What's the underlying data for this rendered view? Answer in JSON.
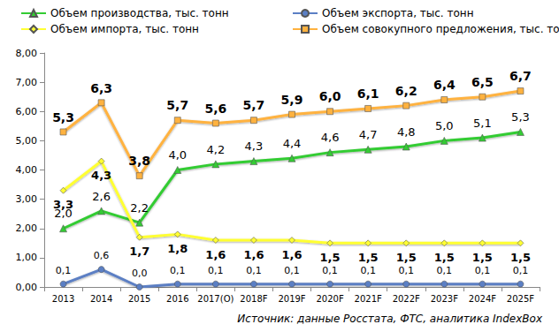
{
  "chart_data": {
    "type": "line",
    "source": "Источник: данные Росстата, ФТС, аналитика IndexBox",
    "categories": [
      "2013",
      "2014",
      "2015",
      "2016",
      "2017(O)",
      "2018F",
      "2019F",
      "2020F",
      "2021F",
      "2022F",
      "2023F",
      "2024F",
      "2025F"
    ],
    "series": [
      {
        "name": "Объем производства, тыс. тонн",
        "color": "#33cc33",
        "marker": "triangle",
        "values": [
          2.0,
          2.6,
          2.2,
          4.0,
          4.2,
          4.3,
          4.4,
          4.6,
          4.7,
          4.8,
          5.0,
          5.1,
          5.3
        ],
        "value_labels": [
          "2,0",
          "2,6",
          "2,2",
          "4,0",
          "4,2",
          "4,3",
          "4,4",
          "4,6",
          "4,7",
          "4,8",
          "5,0",
          "5,1",
          "5,3"
        ]
      },
      {
        "name": "Объем экспорта, тыс. тонн",
        "color": "#5b7fc4",
        "marker": "circle",
        "values": [
          0.1,
          0.6,
          0.0,
          0.1,
          0.1,
          0.1,
          0.1,
          0.1,
          0.1,
          0.1,
          0.1,
          0.1,
          0.1
        ],
        "value_labels": [
          "0,1",
          "0,6",
          "0,0",
          "0,1",
          "0,1",
          "0,1",
          "0,1",
          "0,1",
          "0,1",
          "0,1",
          "0,1",
          "0,1",
          "0,1"
        ]
      },
      {
        "name": "Объем импорта, тыс. тонн",
        "color": "#ffff33",
        "marker": "diamond",
        "values": [
          3.3,
          4.3,
          1.7,
          1.8,
          1.6,
          1.6,
          1.6,
          1.5,
          1.5,
          1.5,
          1.5,
          1.5,
          1.5
        ],
        "value_labels": [
          "3,3",
          "4,3",
          "1,7",
          "1,8",
          "1,6",
          "1,6",
          "1,6",
          "1,5",
          "1,5",
          "1,5",
          "1,5",
          "1,5",
          "1,5"
        ]
      },
      {
        "name": "Объем совокупного предложения, тыс. тонн",
        "color": "#ffb23f",
        "marker": "rect",
        "values": [
          5.3,
          6.3,
          3.8,
          5.7,
          5.6,
          5.7,
          5.9,
          6.0,
          6.1,
          6.2,
          6.4,
          6.5,
          6.7
        ],
        "value_labels": [
          "5,3",
          "6,3",
          "3,8",
          "5,7",
          "5,6",
          "5,7",
          "5,9",
          "6,0",
          "6,1",
          "6,2",
          "6,4",
          "6,5",
          "6,7"
        ]
      }
    ],
    "ylim": [
      0,
      8
    ],
    "yticks": [
      {
        "value": 0,
        "label": "0,00"
      },
      {
        "value": 1,
        "label": "1,00"
      },
      {
        "value": 2,
        "label": "2,00"
      },
      {
        "value": 3,
        "label": "3,00"
      },
      {
        "value": 4,
        "label": "4,00"
      },
      {
        "value": 5,
        "label": "5,00"
      },
      {
        "value": 6,
        "label": "6,00"
      },
      {
        "value": 7,
        "label": "7,00"
      },
      {
        "value": 8,
        "label": "8,00"
      }
    ],
    "grid": false,
    "legend": "top",
    "data_labels": true
  }
}
